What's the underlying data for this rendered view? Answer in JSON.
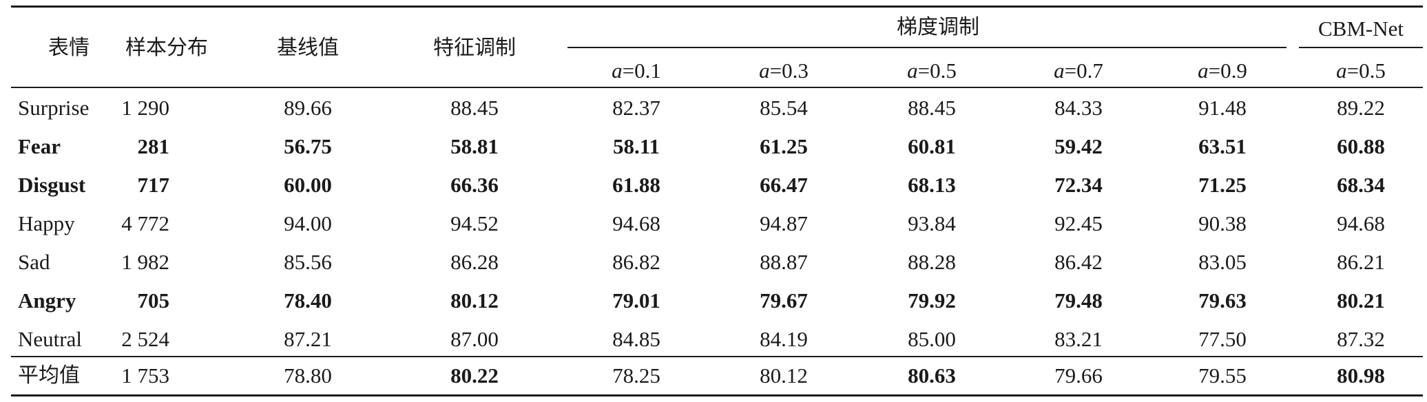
{
  "header": {
    "col_emotion": "表情",
    "col_samples": "样本分布",
    "col_baseline": "基线值",
    "col_feature_mod": "特征调制",
    "col_gradient_mod": "梯度调制",
    "col_cbm": "CBM-Net",
    "alpha_symbol": "a",
    "alpha_values": [
      "=0.1",
      "=0.3",
      "=0.5",
      "=0.7",
      "=0.9"
    ],
    "cbm_alpha": "=0.5"
  },
  "rows": [
    {
      "bold": false,
      "cells": [
        "Surprise",
        "1 290",
        "89.66",
        "88.45",
        "82.37",
        "85.54",
        "88.45",
        "84.33",
        "91.48",
        "89.22"
      ]
    },
    {
      "bold": true,
      "cells": [
        "Fear",
        "281",
        "56.75",
        "58.81",
        "58.11",
        "61.25",
        "60.81",
        "59.42",
        "63.51",
        "60.88"
      ]
    },
    {
      "bold": true,
      "cells": [
        "Disgust",
        "717",
        "60.00",
        "66.36",
        "61.88",
        "66.47",
        "68.13",
        "72.34",
        "71.25",
        "68.34"
      ]
    },
    {
      "bold": false,
      "cells": [
        "Happy",
        "4 772",
        "94.00",
        "94.52",
        "94.68",
        "94.87",
        "93.84",
        "92.45",
        "90.38",
        "94.68"
      ]
    },
    {
      "bold": false,
      "cells": [
        "Sad",
        "1 982",
        "85.56",
        "86.28",
        "86.82",
        "88.87",
        "88.28",
        "86.42",
        "83.05",
        "86.21"
      ]
    },
    {
      "bold": true,
      "cells": [
        "Angry",
        "705",
        "78.40",
        "80.12",
        "79.01",
        "79.67",
        "79.92",
        "79.48",
        "79.63",
        "80.21"
      ]
    },
    {
      "bold": false,
      "cells": [
        "Neutral",
        "2 524",
        "87.21",
        "87.00",
        "84.85",
        "84.19",
        "85.00",
        "83.21",
        "77.50",
        "87.32"
      ]
    }
  ],
  "average": {
    "cells": [
      "平均值",
      "1 753",
      "78.80",
      "80.22",
      "78.25",
      "80.12",
      "80.63",
      "79.66",
      "79.55",
      "80.98"
    ],
    "bold_mask": [
      false,
      false,
      false,
      true,
      false,
      false,
      true,
      false,
      false,
      true
    ]
  }
}
